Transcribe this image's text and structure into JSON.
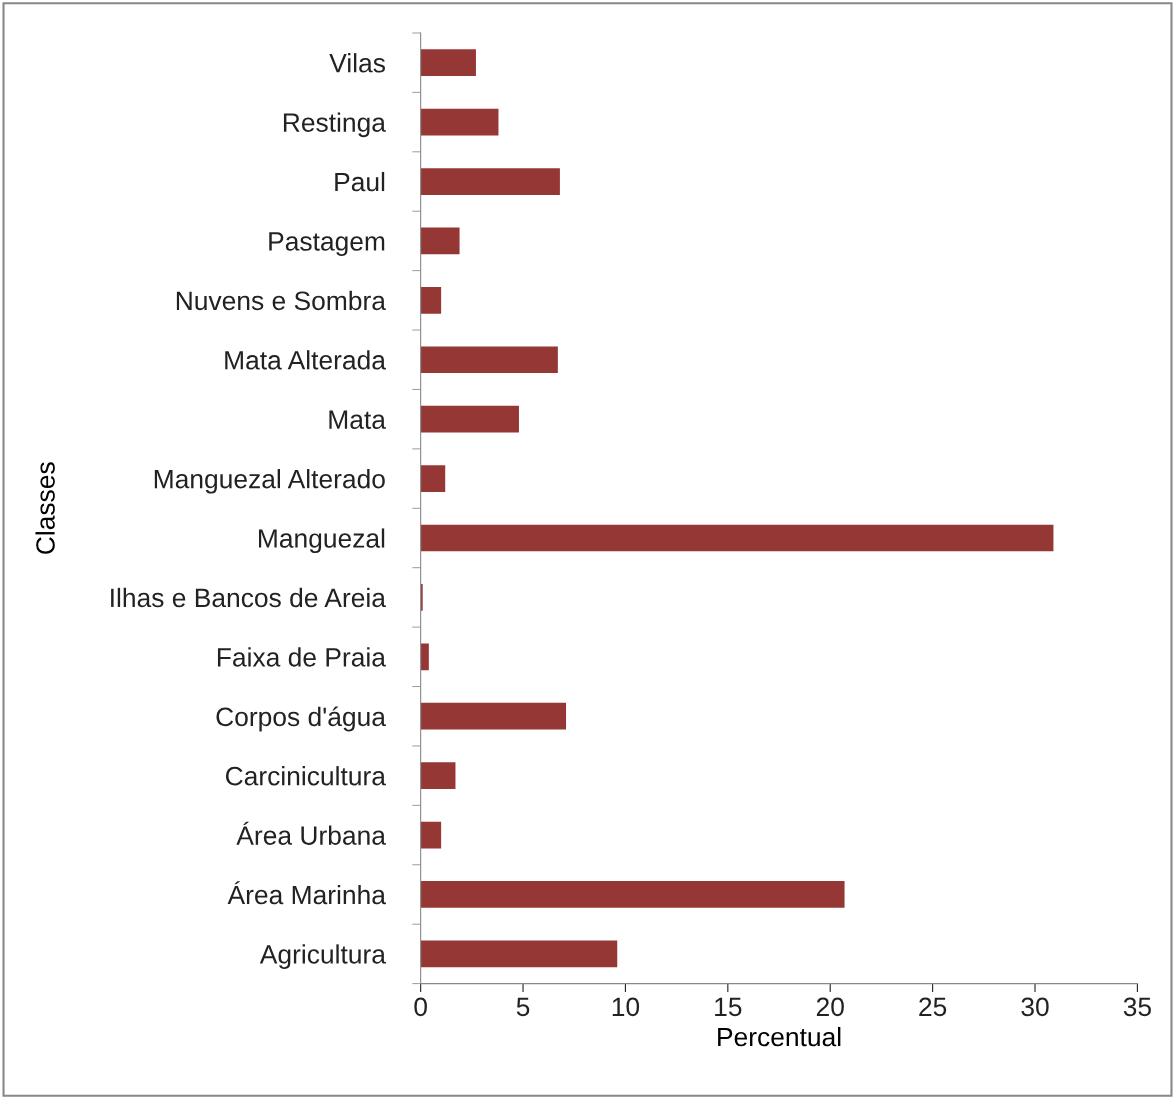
{
  "chart_data": {
    "type": "bar",
    "orientation": "horizontal",
    "xlabel": "Percentual",
    "ylabel": "Classes",
    "categories": [
      "Vilas",
      "Restinga",
      "Paul",
      "Pastagem",
      "Nuvens e Sombra",
      "Mata Alterada",
      "Mata",
      "Manguezal Alterado",
      "Manguezal",
      "Ilhas e Bancos de Areia",
      "Faixa de Praia",
      "Corpos d'água",
      "Carcinicultura",
      "Área Urbana",
      "Área Marinha",
      "Agricultura"
    ],
    "values": [
      2.7,
      3.8,
      6.8,
      1.9,
      1.0,
      6.7,
      4.8,
      1.2,
      30.9,
      0.1,
      0.4,
      7.1,
      1.7,
      1.0,
      20.7,
      9.6
    ],
    "color": "#953735",
    "xlim": [
      0,
      35
    ],
    "xticks": [
      0,
      5,
      10,
      15,
      20,
      25,
      30,
      35
    ],
    "grid": false,
    "legend": false
  }
}
